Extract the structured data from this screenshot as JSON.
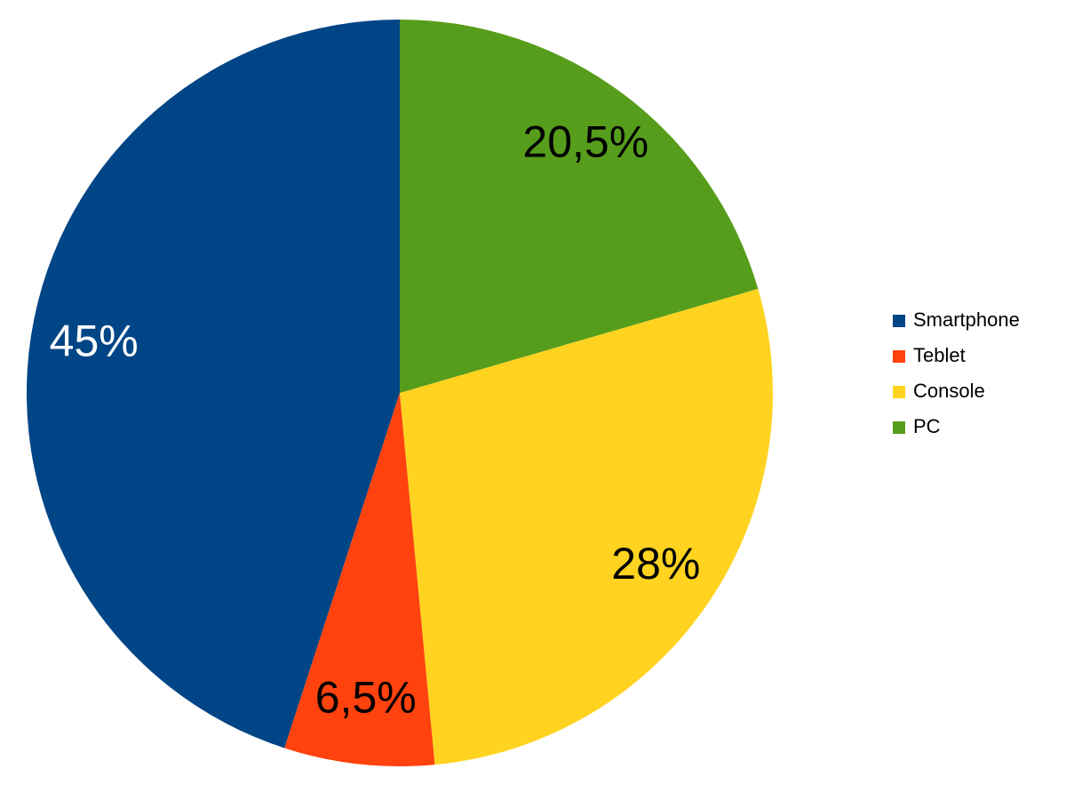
{
  "chart_data": {
    "type": "pie",
    "categories": [
      "Smartphone",
      "Teblet",
      "Console",
      "PC"
    ],
    "values": [
      45,
      6.5,
      28,
      20.5
    ],
    "value_labels": [
      "45%",
      "6,5%",
      "28%",
      "20,5%"
    ],
    "colors": [
      "#004586",
      "#ff420e",
      "#ffd320",
      "#579d1c"
    ],
    "direction": "counterclockwise",
    "legend": "right"
  }
}
